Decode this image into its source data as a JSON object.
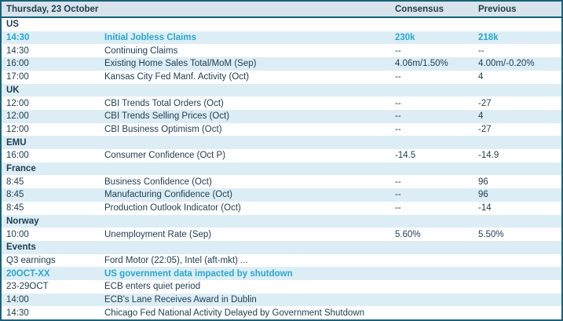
{
  "table": {
    "header": {
      "date": "Thursday, 23 October",
      "consensus": "Consensus",
      "previous": "Previous"
    },
    "rows": [
      {
        "type": "section",
        "label": "US"
      },
      {
        "type": "data",
        "time": "14:30",
        "event": "Initial Jobless Claims",
        "consensus": "230k",
        "previous": "218k",
        "highlight": true
      },
      {
        "type": "data",
        "time": "14:30",
        "event": "Continuing Claims",
        "consensus": "--",
        "previous": "--",
        "highlight": false
      },
      {
        "type": "data",
        "time": "16:00",
        "event": "Existing Home Sales Total/MoM (Sep)",
        "consensus": "4.06m/1.50%",
        "previous": "4.00m/-0.20%",
        "highlight": false
      },
      {
        "type": "data",
        "time": "17:00",
        "event": "Kansas City Fed Manf. Activity (Oct)",
        "consensus": "--",
        "previous": "4",
        "highlight": false
      },
      {
        "type": "section",
        "label": "UK"
      },
      {
        "type": "data",
        "time": "12:00",
        "event": "CBI Trends Total Orders (Oct)",
        "consensus": "--",
        "previous": "-27",
        "highlight": false
      },
      {
        "type": "data",
        "time": "12:00",
        "event": "CBI Trends Selling Prices (Oct)",
        "consensus": "--",
        "previous": "4",
        "highlight": false
      },
      {
        "type": "data",
        "time": "12:00",
        "event": "CBI Business Optimism (Oct)",
        "consensus": "--",
        "previous": "-27",
        "highlight": false
      },
      {
        "type": "section",
        "label": "EMU"
      },
      {
        "type": "data",
        "time": "16:00",
        "event": "Consumer Confidence (Oct P)",
        "consensus": "-14.5",
        "previous": "-14.9",
        "highlight": false
      },
      {
        "type": "section",
        "label": "France"
      },
      {
        "type": "data",
        "time": "8:45",
        "event": "Business Confidence (Oct)",
        "consensus": "--",
        "previous": "96",
        "highlight": false
      },
      {
        "type": "data",
        "time": "8:45",
        "event": "Manufacturing Confidence (Oct)",
        "consensus": "--",
        "previous": "96",
        "highlight": false
      },
      {
        "type": "data",
        "time": "8:45",
        "event": "Production Outlook Indicator (Oct)",
        "consensus": "--",
        "previous": "-14",
        "highlight": false
      },
      {
        "type": "section",
        "label": "Norway"
      },
      {
        "type": "data",
        "time": "10:00",
        "event": "Unemployment Rate (Sep)",
        "consensus": "5.60%",
        "previous": "5.50%",
        "highlight": false
      },
      {
        "type": "section",
        "label": "Events"
      },
      {
        "type": "data",
        "time": "Q3 earnings",
        "event": "Ford Motor (22:05), Intel (aft-mkt) ...",
        "consensus": "",
        "previous": "",
        "highlight": false
      },
      {
        "type": "data",
        "time": "20OCT-XX",
        "event": "US government  data impacted by shutdown",
        "consensus": "",
        "previous": "",
        "highlight": true
      },
      {
        "type": "data",
        "time": "23-29OCT",
        "event": "ECB enters quiet period",
        "consensus": "",
        "previous": "",
        "highlight": false
      },
      {
        "type": "data",
        "time": "14:00",
        "event": "ECB's Lane Receives Award in Dublin",
        "consensus": "",
        "previous": "",
        "highlight": false
      },
      {
        "type": "data",
        "time": "14:30",
        "event": "Chicago Fed National Activity Delayed by Government Shutdown",
        "consensus": "",
        "previous": "",
        "highlight": false
      }
    ]
  },
  "colors": {
    "frame_border": "#1b607a",
    "header_background": "#d8e3eb",
    "row_stripe_background": "#dcedf5",
    "row_background": "#ffffff",
    "text": "#1e3d50",
    "highlight_text": "#2ba7ce"
  }
}
